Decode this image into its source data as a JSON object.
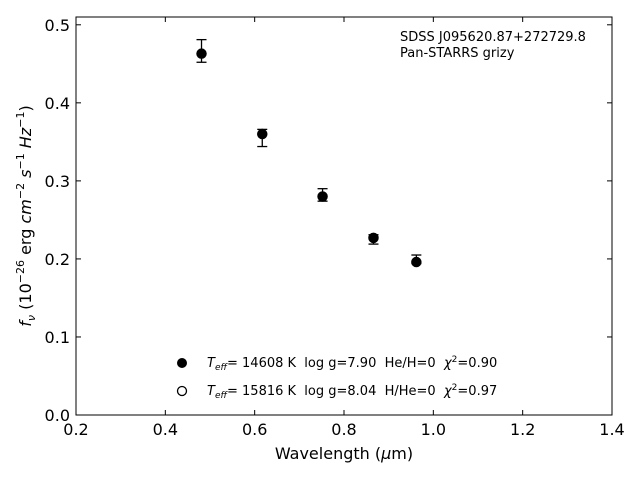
{
  "chart_data": {
    "type": "scatter",
    "annotation": [
      "SDSS J095620.87+272729.8",
      "Pan-STARRS grizy"
    ],
    "xlabel": {
      "pre": "Wavelength (",
      "mu": "μ",
      "post": "m)"
    },
    "ylabel": {
      "f": "f",
      "nu": "ν",
      "a": " (10",
      "e1": "−26",
      "b": " erg ",
      "cm": "cm",
      "e2": "−2",
      "s": " s",
      "e3": "−1",
      "hz": " Hz",
      "e4": "−1",
      "c": ")"
    },
    "xlim": [
      0.2,
      1.4
    ],
    "ylim": [
      0.0,
      0.51
    ],
    "xticks": [
      0.2,
      0.4,
      0.6,
      0.8,
      1.0,
      1.2,
      1.4
    ],
    "yticks": [
      0.0,
      0.1,
      0.2,
      0.3,
      0.4,
      0.5
    ],
    "grid": false,
    "series": [
      {
        "marker": "filled-circle",
        "x": [
          0.481,
          0.617,
          0.752,
          0.866,
          0.962
        ],
        "y": [
          0.463,
          0.36,
          0.28,
          0.227,
          0.196
        ],
        "err_up": [
          0.481,
          0.366,
          0.29,
          0.231,
          0.205
        ],
        "err_down": [
          0.452,
          0.344,
          0.274,
          0.219,
          0.194
        ]
      },
      {
        "marker": "open-circle",
        "x": [
          0.481,
          0.617,
          0.752,
          0.866,
          0.962
        ],
        "y": [
          0.463,
          0.36,
          0.28,
          0.227,
          0.196
        ]
      }
    ],
    "legend": {
      "position": "lower-center",
      "entries": [
        {
          "marker": "filled-circle",
          "T": "T",
          "sub": "eff",
          "text": "= 14608 K  log g=7.90  He/H=0  ",
          "chi": "χ",
          "sup": "2",
          "val": "=0.90"
        },
        {
          "marker": "open-circle",
          "T": "T",
          "sub": "eff",
          "text": "= 15816 K  log g=8.04  H/He=0  ",
          "chi": "χ",
          "sup": "2",
          "val": "=0.97"
        }
      ]
    }
  }
}
